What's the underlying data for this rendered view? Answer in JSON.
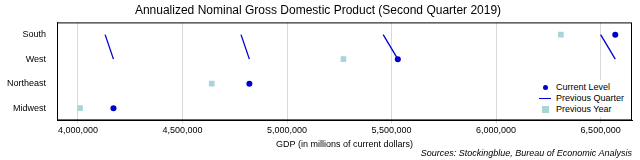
{
  "chart_data": {
    "type": "dot",
    "title": "Annualized Nominal Gross Domestic Product (Second Quarter 2019)",
    "x_label": "GDP (in millions of current dollars)",
    "annotation": "Sources: Stockingblue, Bureau of Economic Analysis",
    "orientation": "horizontal",
    "categories": [
      "South",
      "West",
      "Northeast",
      "Midwest"
    ],
    "series": [
      {
        "name": "Current Level",
        "color": "#0000cc",
        "marker": "circle",
        "values": [
          6570000,
          5530000,
          4820000,
          4170000
        ]
      },
      {
        "name": "Previous Quarter",
        "color": "#0000cc",
        "marker": "none",
        "line_style": "solid",
        "values": [
          6500000,
          5460000,
          4780000,
          4130000
        ]
      },
      {
        "name": "Previous Year",
        "color": "#a9d5d9",
        "marker": "square",
        "values": [
          6310000,
          5270000,
          4640000,
          4010000
        ]
      }
    ],
    "xlim": [
      3900000,
      6650000
    ],
    "xticks": [
      {
        "value": 4000000,
        "label": "4,000,000"
      },
      {
        "value": 4500000,
        "label": "4,500,000"
      },
      {
        "value": 5000000,
        "label": "5,000,000"
      },
      {
        "value": 5500000,
        "label": "5,500,000"
      },
      {
        "value": 6000000,
        "label": "6,000,000"
      },
      {
        "value": 6500000,
        "label": "6,500,000"
      }
    ],
    "grid": true,
    "legend": "lower right"
  }
}
